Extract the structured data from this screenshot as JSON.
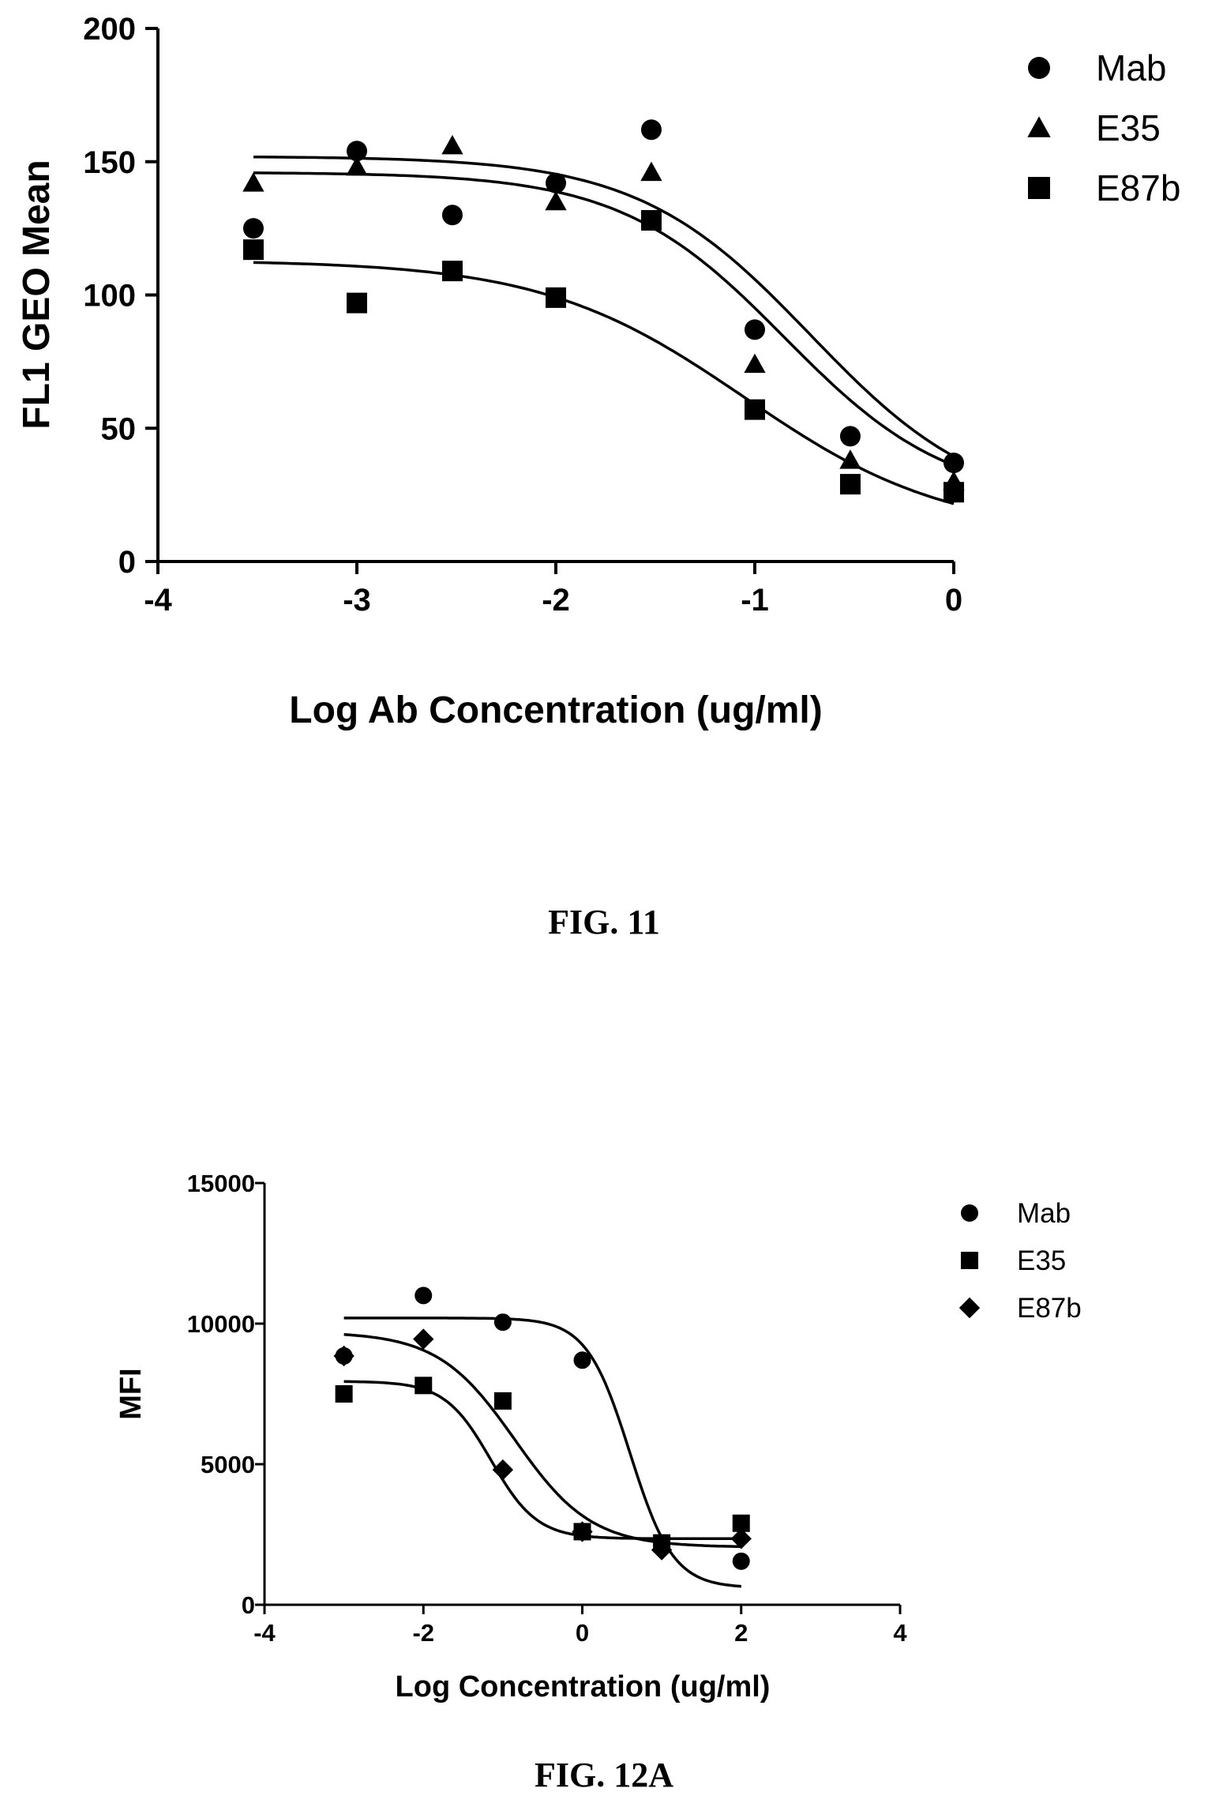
{
  "captions": [
    "FIG. 11",
    "FIG. 12A"
  ],
  "chart_data": [
    {
      "type": "scatter",
      "caption": "FIG. 11",
      "xlabel": "Log Ab Concentration (ug/ml)",
      "ylabel": "FL1 GEO Mean",
      "xlim": [
        -4,
        0
      ],
      "ylim": [
        0,
        200
      ],
      "xticks": [
        "-4",
        "-3",
        "-2",
        "-1",
        "0"
      ],
      "yticks": [
        "0",
        "50",
        "100",
        "150",
        "200"
      ],
      "xtick_values": [
        -4,
        -3,
        -2,
        -1,
        0
      ],
      "ytick_values": [
        0,
        50,
        100,
        150,
        200
      ],
      "legend_position": "top-right",
      "series": [
        {
          "name": "Mab",
          "marker": "circle",
          "x": [
            -3.52,
            -3.0,
            -2.52,
            -2.0,
            -1.52,
            -1.0,
            -0.52,
            0.0
          ],
          "y": [
            125,
            154,
            130,
            142,
            162,
            87,
            47,
            37
          ],
          "fit": {
            "top": 152,
            "bottom": 18,
            "logEC50": -0.72,
            "hill": 1.0
          }
        },
        {
          "name": "E35",
          "marker": "triangle",
          "x": [
            -3.52,
            -3.0,
            -2.52,
            -2.0,
            -1.52,
            -1.0,
            -0.52,
            0.0
          ],
          "y": [
            142,
            148,
            156,
            135,
            146,
            74,
            38,
            30
          ],
          "fit": {
            "top": 146,
            "bottom": 22,
            "logEC50": -0.85,
            "hill": 1.05
          }
        },
        {
          "name": "E87b",
          "marker": "square",
          "x": [
            -3.52,
            -3.0,
            -2.52,
            -2.0,
            -1.52,
            -1.0,
            -0.52,
            0.0
          ],
          "y": [
            117,
            97,
            109,
            99,
            128,
            57,
            29,
            26
          ],
          "fit": {
            "top": 113,
            "bottom": 10,
            "logEC50": -1.05,
            "hill": 0.85
          }
        }
      ]
    },
    {
      "type": "scatter",
      "caption": "FIG. 12A",
      "xlabel": "Log Concentration (ug/ml)",
      "ylabel": "MFI",
      "xlim": [
        -4,
        4
      ],
      "ylim": [
        0,
        15000
      ],
      "xticks": [
        "-4",
        "-2",
        "0",
        "2",
        "4"
      ],
      "yticks": [
        "0",
        "5000",
        "10000",
        "15000"
      ],
      "xtick_values": [
        -4,
        -2,
        0,
        2,
        4
      ],
      "ytick_values": [
        0,
        5000,
        10000,
        15000
      ],
      "legend_position": "top-right",
      "series": [
        {
          "name": "Mab",
          "marker": "circle",
          "x": [
            -3.0,
            -2.0,
            -1.0,
            0.0,
            1.0,
            2.0
          ],
          "y": [
            8850,
            11000,
            10050,
            8700,
            2150,
            1550
          ],
          "fit": {
            "top": 10200,
            "bottom": 600,
            "logEC50": 0.6,
            "hill": 1.6
          }
        },
        {
          "name": "E35",
          "marker": "square",
          "x": [
            -3.0,
            -2.0,
            -1.0,
            0.0,
            1.0,
            2.0
          ],
          "y": [
            7500,
            7800,
            7250,
            2600,
            2200,
            2900
          ],
          "fit": {
            "top": 7950,
            "bottom": 2350,
            "logEC50": -1.15,
            "hill": 1.5
          }
        },
        {
          "name": "E87b",
          "marker": "diamond",
          "x": [
            -3.0,
            -2.0,
            -1.0,
            0.0,
            1.0,
            2.0
          ],
          "y": [
            8850,
            9450,
            4800,
            2600,
            1950,
            2350
          ],
          "fit": {
            "top": 9700,
            "bottom": 2050,
            "logEC50": -0.85,
            "hill": 0.9
          }
        }
      ]
    }
  ]
}
